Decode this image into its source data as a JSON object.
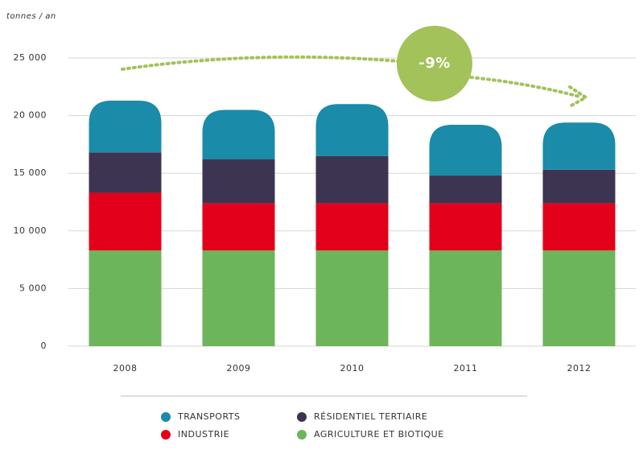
{
  "chart_data": {
    "type": "stacked_bar",
    "y_axis_label": "tonnes / an",
    "annotation": "-9%",
    "categories": [
      "2008",
      "2009",
      "2010",
      "2011",
      "2012"
    ],
    "series": [
      {
        "name": "AGRICULTURE ET BIOTIQUE",
        "color": "#6db55a",
        "values": [
          8300,
          8300,
          8300,
          8300,
          8300
        ]
      },
      {
        "name": "INDUSTRIE",
        "color": "#e2001a",
        "values": [
          5000,
          4100,
          4100,
          4100,
          4100
        ]
      },
      {
        "name": "RÉSIDENTIEL TERTIAIRE",
        "color": "#3d3452",
        "values": [
          3500,
          3800,
          4100,
          2400,
          2900
        ]
      },
      {
        "name": "TRANSPORTS",
        "color": "#1a8ba8",
        "values": [
          4500,
          4300,
          4500,
          4400,
          4100
        ]
      }
    ],
    "ylim": [
      0,
      25000
    ],
    "yticks": [
      0,
      {
        "value": 5000,
        "label": "5 000"
      },
      {
        "value": 10000,
        "label": "10 000"
      },
      {
        "value": 15000,
        "label": "15 000"
      },
      {
        "value": 20000,
        "label": "20 000"
      },
      {
        "value": 25000,
        "label": "25 000"
      }
    ],
    "grid": true
  }
}
